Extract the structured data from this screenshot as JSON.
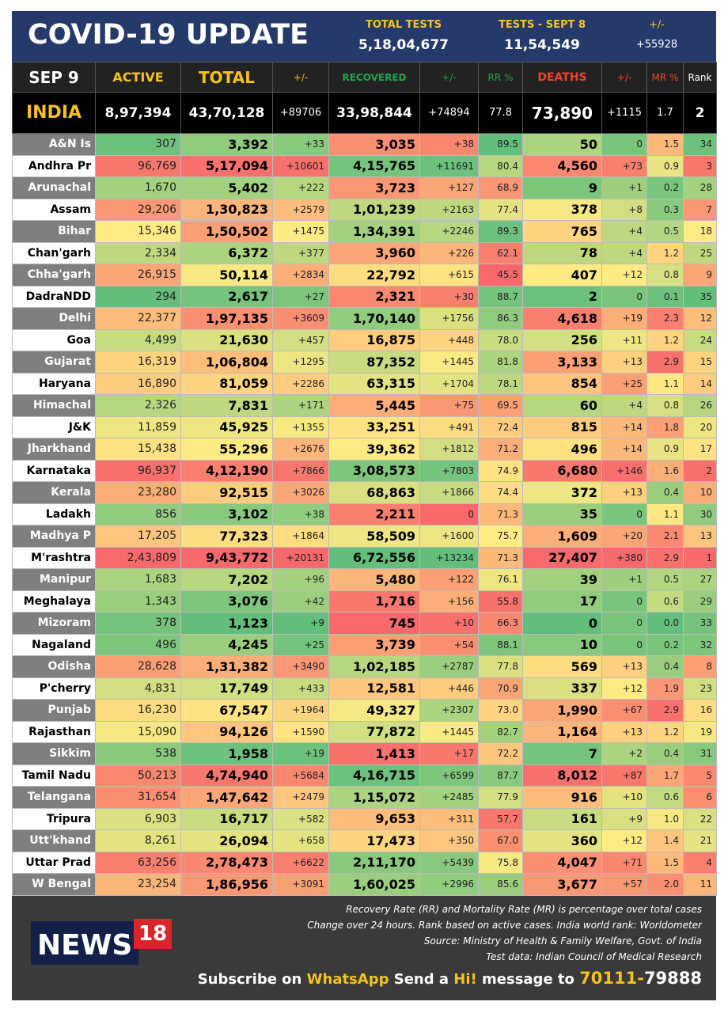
{
  "header": {
    "title": "COVID-19 UPDATE",
    "total_tests_label": "TOTAL TESTS",
    "total_tests": "5,18,04,677",
    "tests_day_label": "TESTS - SEPT 8",
    "tests_day": "11,54,549",
    "tests_change_label": "+/-",
    "tests_change": "+55928"
  },
  "colors": {
    "header_bg": "#253a6b",
    "accent": "#f4c21e",
    "green": "#63be7b",
    "yellow": "#ffeb84",
    "red": "#f8696b"
  },
  "columns": [
    "SEP 9",
    "ACTIVE",
    "TOTAL",
    "+/-",
    "RECOVERED",
    "+/-",
    "RR %",
    "DEATHS",
    "+/-",
    "MR %",
    "Rank"
  ],
  "india": [
    "INDIA",
    "8,97,394",
    "43,70,128",
    "+89706",
    "33,98,844",
    "+74894",
    "77.8",
    "73,890",
    "+1115",
    "1.7",
    "2"
  ],
  "states": [
    [
      "A&N Is",
      "307",
      "3,392",
      "+33",
      "3,035",
      "+38",
      "89.5",
      "50",
      "0",
      "1.5",
      "34"
    ],
    [
      "Andhra Pr",
      "96,769",
      "5,17,094",
      "+10601",
      "4,15,765",
      "+11691",
      "80.4",
      "4,560",
      "+73",
      "0.9",
      "3"
    ],
    [
      "Arunachal",
      "1,670",
      "5,402",
      "+222",
      "3,723",
      "+127",
      "68.9",
      "9",
      "+1",
      "0.2",
      "28"
    ],
    [
      "Assam",
      "29,206",
      "1,30,823",
      "+2579",
      "1,01,239",
      "+2163",
      "77.4",
      "378",
      "+8",
      "0.3",
      "7"
    ],
    [
      "Bihar",
      "15,346",
      "1,50,502",
      "+1475",
      "1,34,391",
      "+2246",
      "89.3",
      "765",
      "+4",
      "0.5",
      "18"
    ],
    [
      "Chan'garh",
      "2,334",
      "6,372",
      "+377",
      "3,960",
      "+226",
      "62.1",
      "78",
      "+4",
      "1.2",
      "25"
    ],
    [
      "Chha'garh",
      "26,915",
      "50,114",
      "+2834",
      "22,792",
      "+615",
      "45.5",
      "407",
      "+12",
      "0.8",
      "9"
    ],
    [
      "DadraNDD",
      "294",
      "2,617",
      "+27",
      "2,321",
      "+30",
      "88.7",
      "2",
      "0",
      "0.1",
      "35"
    ],
    [
      "Delhi",
      "22,377",
      "1,97,135",
      "+3609",
      "1,70,140",
      "+1756",
      "86.3",
      "4,618",
      "+19",
      "2.3",
      "12"
    ],
    [
      "Goa",
      "4,499",
      "21,630",
      "+457",
      "16,875",
      "+448",
      "78.0",
      "256",
      "+11",
      "1.2",
      "24"
    ],
    [
      "Gujarat",
      "16,319",
      "1,06,804",
      "+1295",
      "87,352",
      "+1445",
      "81.8",
      "3,133",
      "+13",
      "2.9",
      "15"
    ],
    [
      "Haryana",
      "16,890",
      "81,059",
      "+2286",
      "63,315",
      "+1704",
      "78.1",
      "854",
      "+25",
      "1.1",
      "14"
    ],
    [
      "Himachal",
      "2,326",
      "7,831",
      "+171",
      "5,445",
      "+75",
      "69.5",
      "60",
      "+4",
      "0.8",
      "26"
    ],
    [
      "J&K",
      "11,859",
      "45,925",
      "+1355",
      "33,251",
      "+491",
      "72.4",
      "815",
      "+14",
      "1.8",
      "20"
    ],
    [
      "Jharkhand",
      "15,438",
      "55,296",
      "+2676",
      "39,362",
      "+1812",
      "71.2",
      "496",
      "+14",
      "0.9",
      "17"
    ],
    [
      "Karnataka",
      "96,937",
      "4,12,190",
      "+7866",
      "3,08,573",
      "+7803",
      "74.9",
      "6,680",
      "+146",
      "1.6",
      "2"
    ],
    [
      "Kerala",
      "23,280",
      "92,515",
      "+3026",
      "68,863",
      "+1866",
      "74.4",
      "372",
      "+13",
      "0.4",
      "10"
    ],
    [
      "Ladakh",
      "856",
      "3,102",
      "+38",
      "2,211",
      "0",
      "71.3",
      "35",
      "0",
      "1.1",
      "30"
    ],
    [
      "Madhya P",
      "17,205",
      "77,323",
      "+1864",
      "58,509",
      "+1600",
      "75.7",
      "1,609",
      "+20",
      "2.1",
      "13"
    ],
    [
      "M'rashtra",
      "2,43,809",
      "9,43,772",
      "+20131",
      "6,72,556",
      "+13234",
      "71.3",
      "27,407",
      "+380",
      "2.9",
      "1"
    ],
    [
      "Manipur",
      "1,683",
      "7,202",
      "+96",
      "5,480",
      "+122",
      "76.1",
      "39",
      "+1",
      "0.5",
      "27"
    ],
    [
      "Meghalaya",
      "1,343",
      "3,076",
      "+42",
      "1,716",
      "+156",
      "55.8",
      "17",
      "0",
      "0.6",
      "29"
    ],
    [
      "Mizoram",
      "378",
      "1,123",
      "+9",
      "745",
      "+10",
      "66.3",
      "0",
      "0",
      "0.0",
      "33"
    ],
    [
      "Nagaland",
      "496",
      "4,245",
      "+25",
      "3,739",
      "+54",
      "88.1",
      "10",
      "0",
      "0.2",
      "32"
    ],
    [
      "Odisha",
      "28,628",
      "1,31,382",
      "+3490",
      "1,02,185",
      "+2787",
      "77.8",
      "569",
      "+13",
      "0.4",
      "8"
    ],
    [
      "P'cherry",
      "4,831",
      "17,749",
      "+433",
      "12,581",
      "+446",
      "70.9",
      "337",
      "+12",
      "1.9",
      "23"
    ],
    [
      "Punjab",
      "16,230",
      "67,547",
      "+1964",
      "49,327",
      "+2307",
      "73.0",
      "1,990",
      "+67",
      "2.9",
      "16"
    ],
    [
      "Rajasthan",
      "15,090",
      "94,126",
      "+1590",
      "77,872",
      "+1445",
      "82.7",
      "1,164",
      "+13",
      "1.2",
      "19"
    ],
    [
      "Sikkim",
      "538",
      "1,958",
      "+19",
      "1,413",
      "+17",
      "72.2",
      "7",
      "+2",
      "0.4",
      "31"
    ],
    [
      "Tamil Nadu",
      "50,213",
      "4,74,940",
      "+5684",
      "4,16,715",
      "+6599",
      "87.7",
      "8,012",
      "+87",
      "1.7",
      "5"
    ],
    [
      "Telangana",
      "31,654",
      "1,47,642",
      "+2479",
      "1,15,072",
      "+2485",
      "77.9",
      "916",
      "+10",
      "0.6",
      "6"
    ],
    [
      "Tripura",
      "6,903",
      "16,717",
      "+582",
      "9,653",
      "+311",
      "57.7",
      "161",
      "+9",
      "1.0",
      "22"
    ],
    [
      "Utt'khand",
      "8,261",
      "26,094",
      "+658",
      "17,473",
      "+350",
      "67.0",
      "360",
      "+12",
      "1.4",
      "21"
    ],
    [
      "Uttar Prad",
      "63,256",
      "2,78,473",
      "+6622",
      "2,11,170",
      "+5439",
      "75.8",
      "4,047",
      "+71",
      "1.5",
      "4"
    ],
    [
      "W Bengal",
      "23,254",
      "1,86,956",
      "+3091",
      "1,60,025",
      "+2996",
      "85.6",
      "3,677",
      "+57",
      "2.0",
      "11"
    ]
  ],
  "footer": {
    "logo": "NEWS18",
    "notes": [
      "Recovery Rate (RR) and Mortality Rate (MR) is percentage over total cases",
      "Change over 24 hours. Rank based on active cases. India world rank: Worldometer",
      "Source: Ministry of Health & Family Welfare, Govt. of India",
      "Test data: Indian Council of Medical Research"
    ],
    "subscribe": {
      "a": "Subscribe on ",
      "b": "WhatsApp",
      "c": " Send a ",
      "d": "Hi!",
      "e": " message to ",
      "f": "70111-",
      "g": "79888"
    }
  }
}
